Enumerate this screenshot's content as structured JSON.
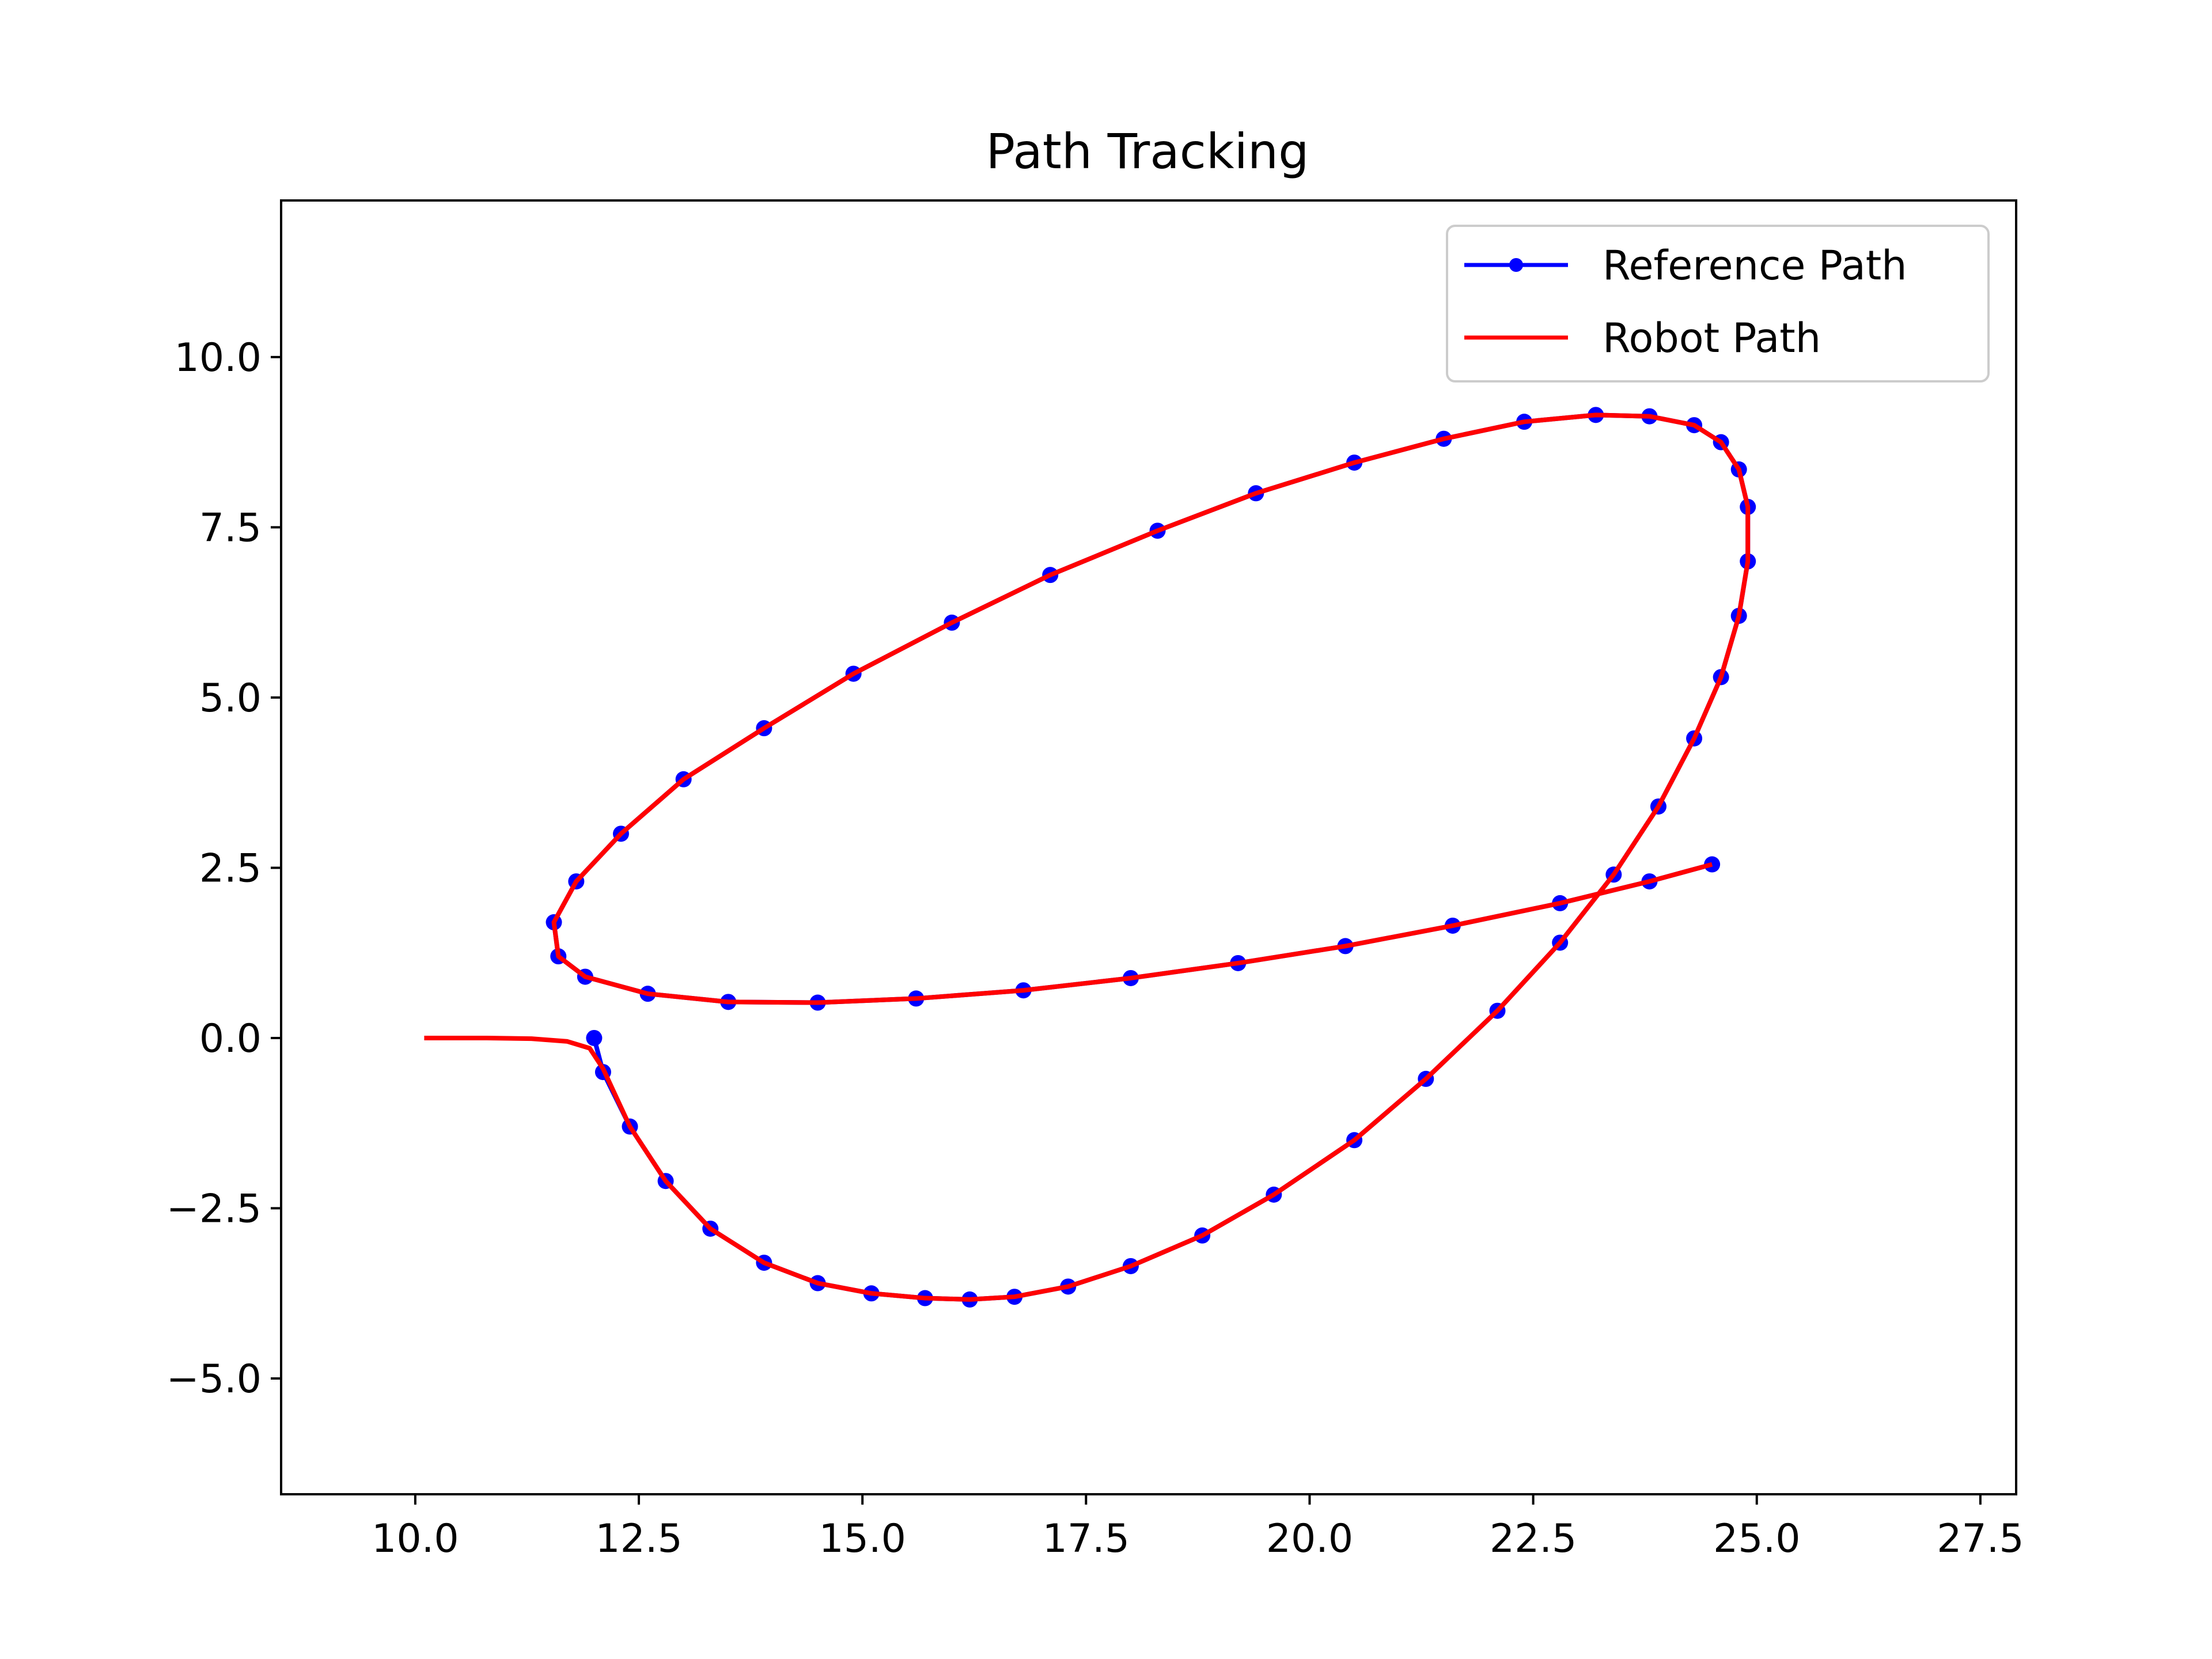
{
  "chart_data": {
    "type": "line",
    "title": "Path Tracking",
    "xlabel": "",
    "ylabel": "",
    "xlim": [
      8.5,
      27.9
    ],
    "ylim": [
      -6.7,
      12.3
    ],
    "x_ticks": [
      10.0,
      12.5,
      15.0,
      17.5,
      20.0,
      22.5,
      25.0,
      27.5
    ],
    "y_ticks": [
      -5.0,
      -2.5,
      0.0,
      2.5,
      5.0,
      7.5,
      10.0
    ],
    "x_tick_labels": [
      "10.0",
      "12.5",
      "15.0",
      "17.5",
      "20.0",
      "22.5",
      "25.0",
      "27.5"
    ],
    "y_tick_labels": [
      "−5.0",
      "−2.5",
      "0.0",
      "2.5",
      "5.0",
      "7.5",
      "10.0"
    ],
    "grid": false,
    "legend_position": "top-right",
    "series": [
      {
        "name": "Reference Path",
        "color": "#0000ff",
        "marker": "circle",
        "x": [
          12.0,
          12.1,
          12.4,
          12.8,
          13.3,
          13.9,
          14.5,
          15.1,
          15.7,
          16.2,
          16.7,
          17.3,
          18.0,
          18.8,
          19.6,
          20.5,
          21.3,
          22.1,
          22.8,
          23.4,
          23.9,
          24.3,
          24.6,
          24.8,
          24.9,
          24.9,
          24.8,
          24.6,
          24.3,
          23.8,
          23.2,
          22.4,
          21.5,
          20.5,
          19.4,
          18.3,
          17.1,
          16.0,
          14.9,
          13.9,
          13.0,
          12.3,
          11.8,
          11.55,
          11.6,
          11.9,
          12.6,
          13.5,
          14.5,
          15.6,
          16.8,
          18.0,
          19.2,
          20.4,
          21.6,
          22.8,
          23.8,
          24.5
        ],
        "y": [
          0.0,
          -0.5,
          -1.3,
          -2.1,
          -2.8,
          -3.3,
          -3.6,
          -3.75,
          -3.82,
          -3.84,
          -3.8,
          -3.65,
          -3.35,
          -2.9,
          -2.3,
          -1.5,
          -0.6,
          0.4,
          1.4,
          2.4,
          3.4,
          4.4,
          5.3,
          6.2,
          7.0,
          7.8,
          8.35,
          8.75,
          9.0,
          9.13,
          9.15,
          9.05,
          8.8,
          8.45,
          8.0,
          7.45,
          6.8,
          6.1,
          5.35,
          4.55,
          3.8,
          3.0,
          2.3,
          1.7,
          1.2,
          0.9,
          0.65,
          0.53,
          0.52,
          0.58,
          0.7,
          0.88,
          1.1,
          1.35,
          1.65,
          1.98,
          2.3,
          2.55
        ]
      },
      {
        "name": "Robot Path",
        "color": "#ff0000",
        "x": [
          10.1,
          10.8,
          11.3,
          11.7,
          11.95,
          12.1,
          12.4,
          12.8,
          13.3,
          13.9,
          14.5,
          15.1,
          15.7,
          16.2,
          16.7,
          17.3,
          18.0,
          18.8,
          19.6,
          20.5,
          21.3,
          22.1,
          22.8,
          23.4,
          23.9,
          24.3,
          24.6,
          24.8,
          24.9,
          24.9,
          24.8,
          24.6,
          24.3,
          23.8,
          23.2,
          22.4,
          21.5,
          20.5,
          19.4,
          18.3,
          17.1,
          16.0,
          14.9,
          13.9,
          13.0,
          12.3,
          11.8,
          11.55,
          11.6,
          11.9,
          12.6,
          13.5,
          14.5,
          15.6,
          16.8,
          18.0,
          19.2,
          20.4,
          21.6,
          22.8,
          23.8,
          24.5
        ],
        "y": [
          0.0,
          0.0,
          -0.01,
          -0.05,
          -0.15,
          -0.45,
          -1.3,
          -2.1,
          -2.8,
          -3.3,
          -3.6,
          -3.75,
          -3.82,
          -3.84,
          -3.8,
          -3.65,
          -3.35,
          -2.9,
          -2.3,
          -1.5,
          -0.6,
          0.4,
          1.4,
          2.4,
          3.4,
          4.4,
          5.3,
          6.2,
          7.0,
          7.8,
          8.35,
          8.75,
          9.0,
          9.13,
          9.15,
          9.05,
          8.8,
          8.45,
          8.0,
          7.45,
          6.8,
          6.1,
          5.35,
          4.55,
          3.8,
          3.0,
          2.3,
          1.7,
          1.2,
          0.9,
          0.65,
          0.53,
          0.52,
          0.58,
          0.7,
          0.88,
          1.1,
          1.35,
          1.65,
          1.98,
          2.3,
          2.55
        ]
      }
    ]
  }
}
